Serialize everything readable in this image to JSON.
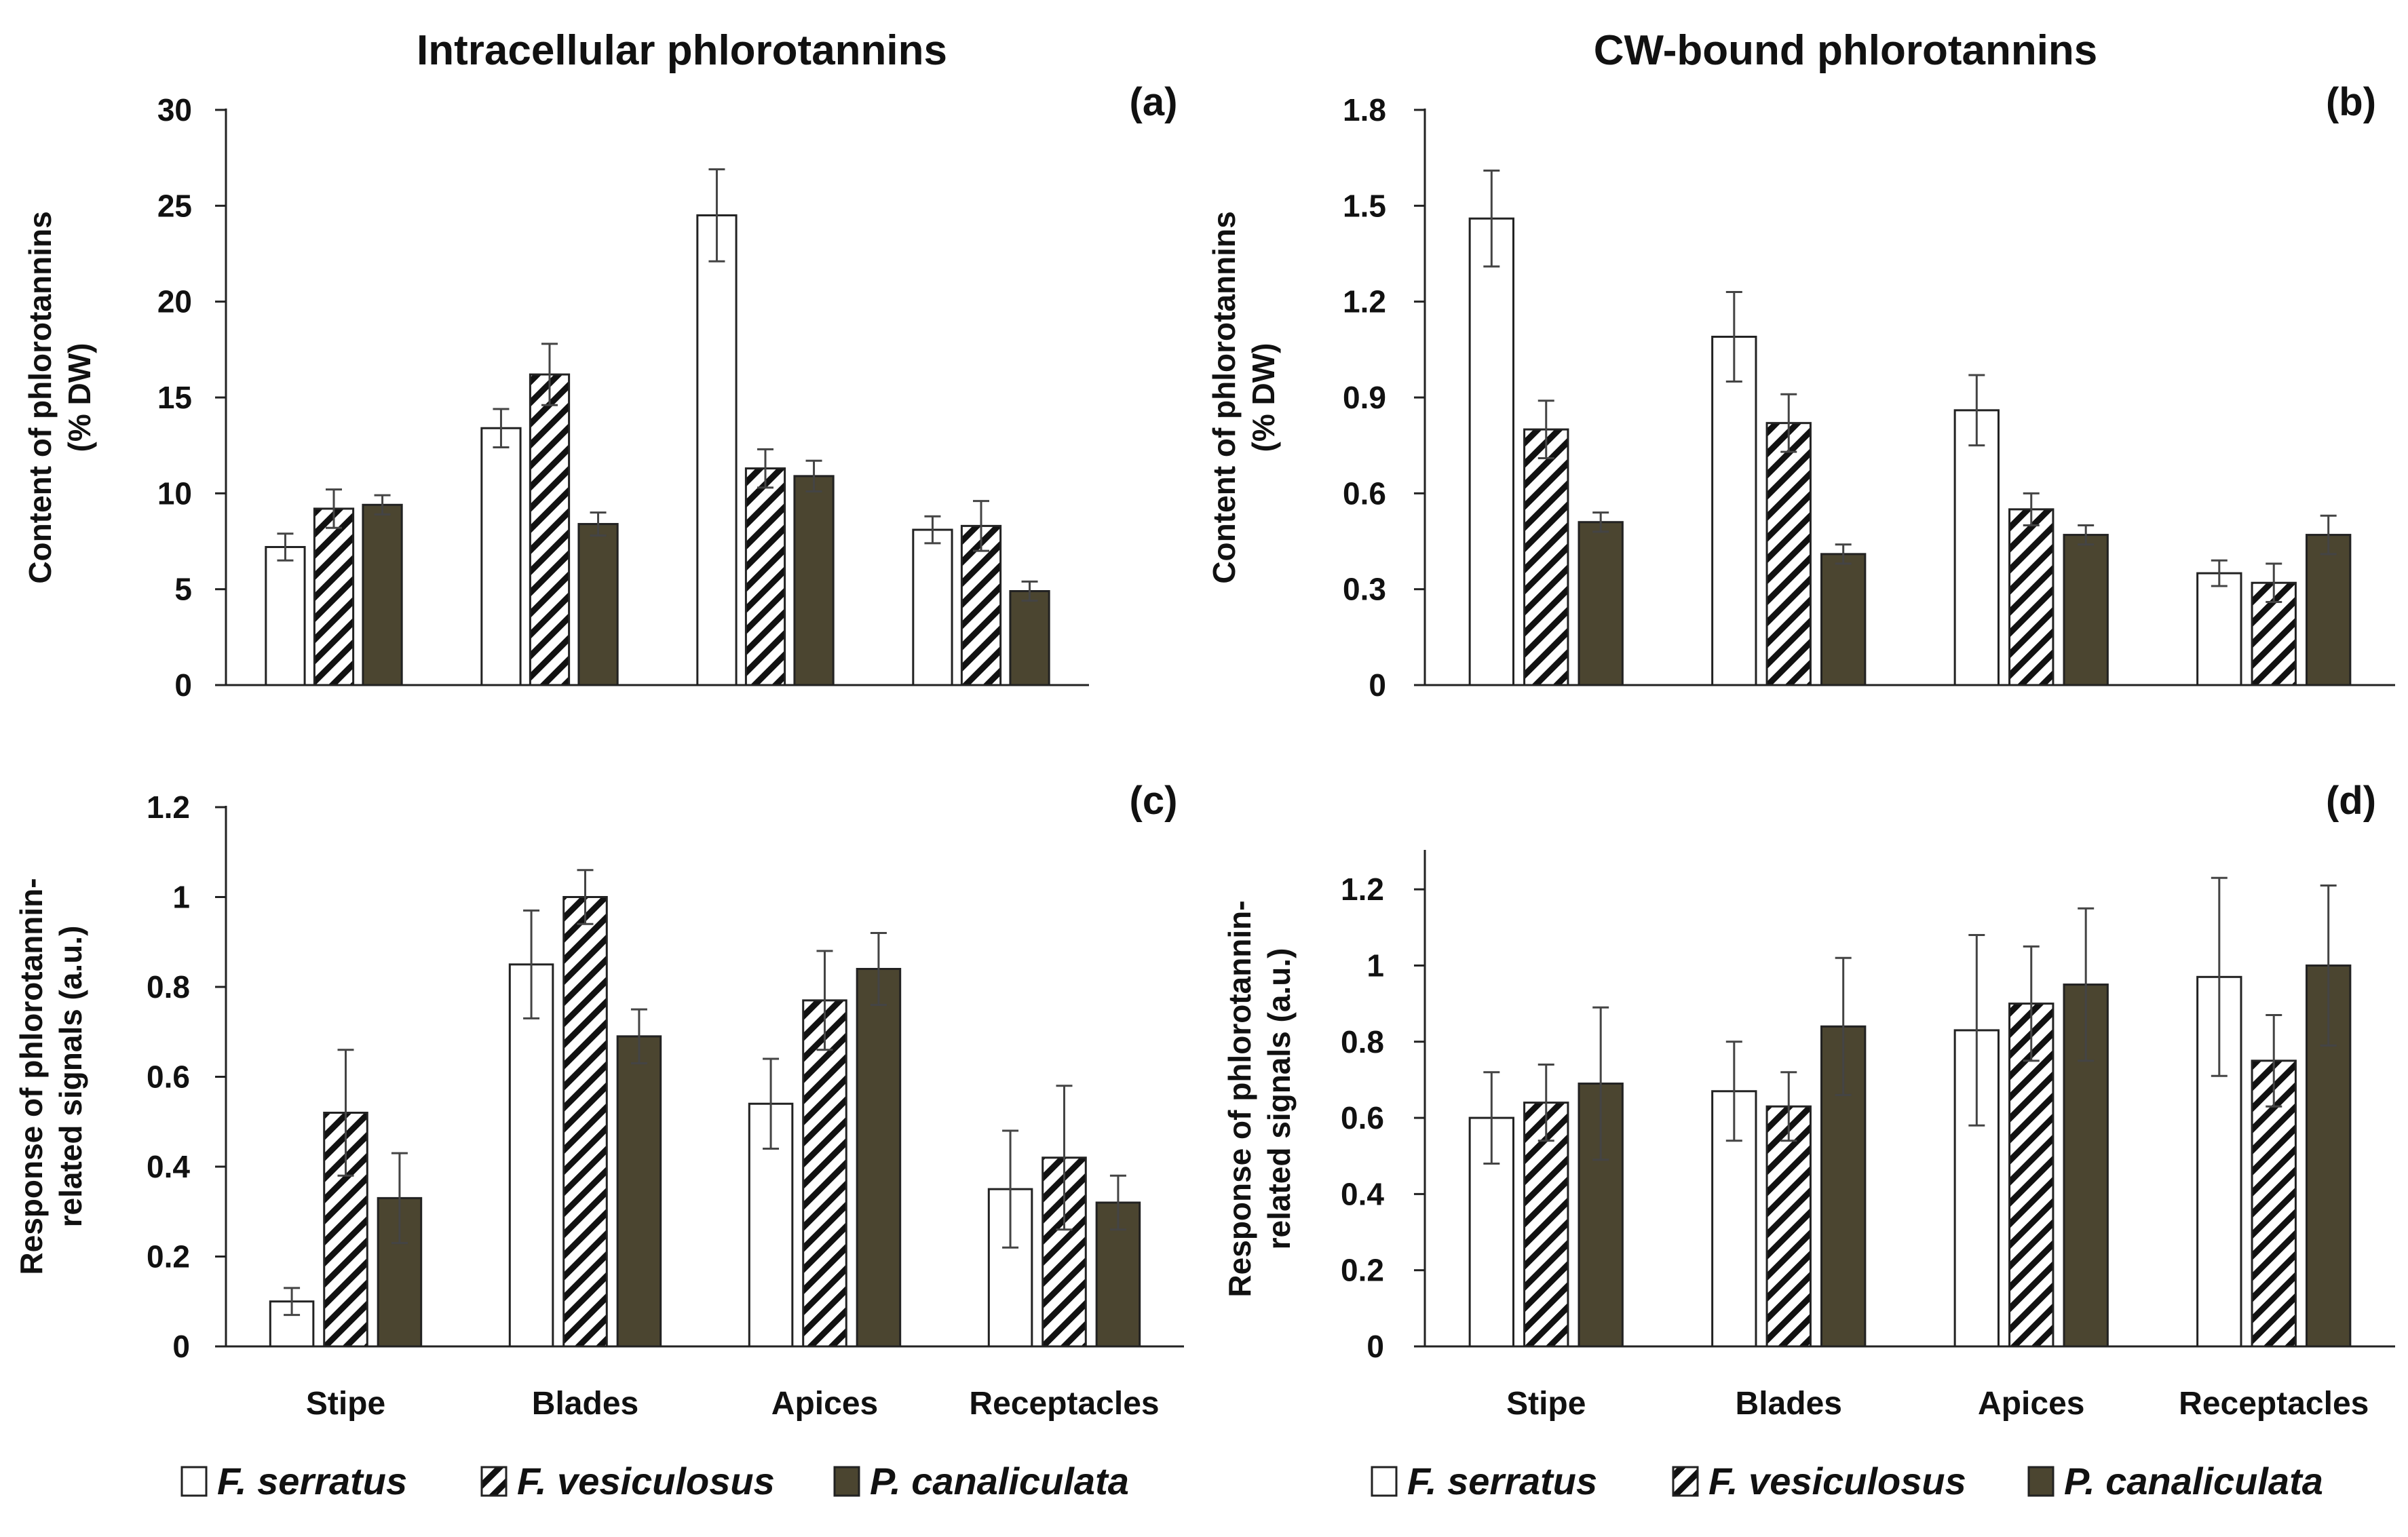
{
  "colors": {
    "axis": "#222222",
    "hatch": "#111111",
    "series_fill": [
      "#ffffff",
      "hatch",
      "#4b4530"
    ],
    "series_stroke": [
      "#222222",
      "#222222",
      "#222222"
    ],
    "error_bar": "#444444"
  },
  "chart_data": [
    {
      "id": "a",
      "type": "bar",
      "title": "Intracellular phlorotannins",
      "panel_label": "(a)",
      "ylabel_lines": [
        "Content of phlorotannins",
        "(% DW)"
      ],
      "categories": [
        "Stipe",
        "Blades",
        "Apices",
        "Receptacles"
      ],
      "show_xticks": false,
      "ylim": [
        0,
        30
      ],
      "yticks": [
        0,
        5,
        10,
        15,
        20,
        25,
        30
      ],
      "ytick_labels": [
        "0",
        "5",
        "10",
        "15",
        "20",
        "25",
        "30"
      ],
      "series": [
        {
          "name": "F. serratus",
          "values": [
            7.2,
            13.4,
            24.5,
            8.1
          ],
          "errors": [
            0.7,
            1.0,
            2.4,
            0.7
          ]
        },
        {
          "name": "F. vesiculosus",
          "values": [
            9.2,
            16.2,
            11.3,
            8.3
          ],
          "errors": [
            1.0,
            1.6,
            1.0,
            1.3
          ]
        },
        {
          "name": "P. canaliculata",
          "values": [
            9.4,
            8.4,
            10.9,
            4.9
          ],
          "errors": [
            0.5,
            0.6,
            0.8,
            0.5
          ]
        }
      ]
    },
    {
      "id": "b",
      "type": "bar",
      "title": "CW-bound phlorotannins",
      "panel_label": "(b)",
      "ylabel_lines": [
        "Content of phlorotannins",
        "(% DW)"
      ],
      "categories": [
        "Stipe",
        "Blades",
        "Apices",
        "Receptacles"
      ],
      "show_xticks": false,
      "ylim": [
        0,
        1.8
      ],
      "yticks": [
        0,
        0.3,
        0.6,
        0.9,
        1.2,
        1.5,
        1.8
      ],
      "ytick_labels": [
        "0",
        "0.3",
        "0.6",
        "0.9",
        "1.2",
        "1.5",
        "1.8"
      ],
      "series": [
        {
          "name": "F. serratus",
          "values": [
            1.46,
            1.09,
            0.86,
            0.35
          ],
          "errors": [
            0.15,
            0.14,
            0.11,
            0.04
          ]
        },
        {
          "name": "F. vesiculosus",
          "values": [
            0.8,
            0.82,
            0.55,
            0.32
          ],
          "errors": [
            0.09,
            0.09,
            0.05,
            0.06
          ]
        },
        {
          "name": "P. canaliculata",
          "values": [
            0.51,
            0.41,
            0.47,
            0.47
          ],
          "errors": [
            0.03,
            0.03,
            0.03,
            0.06
          ]
        }
      ]
    },
    {
      "id": "c",
      "type": "bar",
      "title": "",
      "panel_label": "(c)",
      "ylabel_lines": [
        "Response of phlorotannin-",
        "related signals (a.u.)"
      ],
      "categories": [
        "Stipe",
        "Blades",
        "Apices",
        "Receptacles"
      ],
      "show_xticks": true,
      "ylim": [
        0,
        1.2
      ],
      "yticks": [
        0,
        0.2,
        0.4,
        0.6,
        0.8,
        1.0,
        1.2
      ],
      "ytick_labels": [
        "0",
        "0.2",
        "0.4",
        "0.6",
        "0.8",
        "1",
        "1.2"
      ],
      "series": [
        {
          "name": "F. serratus",
          "values": [
            0.1,
            0.85,
            0.54,
            0.35
          ],
          "errors": [
            0.03,
            0.12,
            0.1,
            0.13
          ]
        },
        {
          "name": "F. vesiculosus",
          "values": [
            0.52,
            1.0,
            0.77,
            0.42
          ],
          "errors": [
            0.14,
            0.06,
            0.11,
            0.16
          ]
        },
        {
          "name": "P. canaliculata",
          "values": [
            0.33,
            0.69,
            0.84,
            0.32
          ],
          "errors": [
            0.1,
            0.06,
            0.08,
            0.06
          ]
        }
      ]
    },
    {
      "id": "d",
      "type": "bar",
      "title": "",
      "panel_label": "(d)",
      "ylabel_lines": [
        "Response of phlorotannin-",
        "related signals (a.u.)"
      ],
      "categories": [
        "Stipe",
        "Blades",
        "Apices",
        "Receptacles"
      ],
      "show_xticks": true,
      "ylim": [
        0,
        1.3
      ],
      "yticks": [
        0,
        0.2,
        0.4,
        0.6,
        0.8,
        1.0,
        1.2
      ],
      "ytick_labels": [
        "0",
        "0.2",
        "0.4",
        "0.6",
        "0.8",
        "1",
        "1.2"
      ],
      "series": [
        {
          "name": "F. serratus",
          "values": [
            0.6,
            0.67,
            0.83,
            0.97
          ],
          "errors": [
            0.12,
            0.13,
            0.25,
            0.26
          ]
        },
        {
          "name": "F. vesiculosus",
          "values": [
            0.64,
            0.63,
            0.9,
            0.75
          ],
          "errors": [
            0.1,
            0.09,
            0.15,
            0.12
          ]
        },
        {
          "name": "P. canaliculata",
          "values": [
            0.69,
            0.84,
            0.95,
            1.0
          ],
          "errors": [
            0.2,
            0.18,
            0.2,
            0.21
          ]
        }
      ]
    }
  ],
  "legend": {
    "items": [
      "F. serratus",
      "F. vesiculosus",
      "P. canaliculata"
    ]
  }
}
